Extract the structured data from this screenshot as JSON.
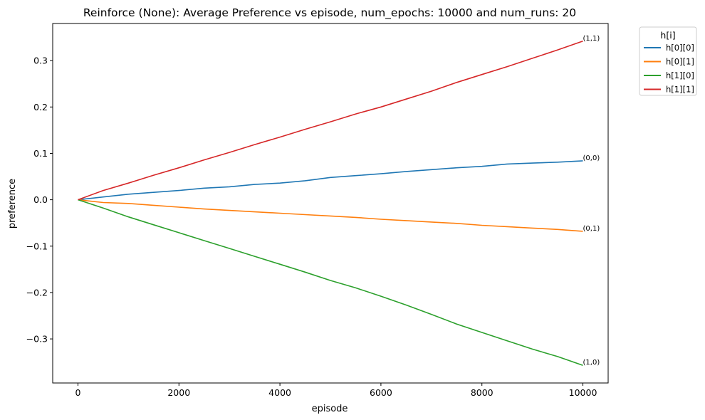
{
  "chart_data": {
    "type": "line",
    "title": "Reinforce (None): Average Preference vs episode, num_epochs: 10000 and num_runs: 20",
    "xlabel": "episode",
    "ylabel": "preference",
    "xlim": [
      -500,
      10500
    ],
    "ylim": [
      -0.395,
      0.38
    ],
    "xticks": [
      0,
      2000,
      4000,
      6000,
      8000,
      10000
    ],
    "yticks": [
      -0.3,
      -0.2,
      -0.1,
      0.0,
      0.1,
      0.2,
      0.3
    ],
    "ytick_labels": [
      "−0.3",
      "−0.2",
      "−0.1",
      "0.0",
      "0.1",
      "0.2",
      "0.3"
    ],
    "grid": false,
    "legend": {
      "title": "h[i]",
      "placement": "outside-top-right"
    },
    "series": [
      {
        "name": "h[0][0]",
        "color": "#1f77b4",
        "end_label": "(0,0)",
        "x": [
          0,
          500,
          1000,
          1500,
          2000,
          2500,
          3000,
          3500,
          4000,
          4500,
          5000,
          5500,
          6000,
          6500,
          7000,
          7500,
          8000,
          8500,
          9000,
          9500,
          10000
        ],
        "y": [
          0.0,
          0.006,
          0.012,
          0.016,
          0.02,
          0.025,
          0.028,
          0.033,
          0.036,
          0.041,
          0.048,
          0.052,
          0.056,
          0.061,
          0.065,
          0.069,
          0.072,
          0.077,
          0.079,
          0.081,
          0.084
        ]
      },
      {
        "name": "h[0][1]",
        "color": "#ff7f0e",
        "end_label": "(0,1)",
        "x": [
          0,
          500,
          1000,
          1500,
          2000,
          2500,
          3000,
          3500,
          4000,
          4500,
          5000,
          5500,
          6000,
          6500,
          7000,
          7500,
          8000,
          8500,
          9000,
          9500,
          10000
        ],
        "y": [
          0.0,
          -0.006,
          -0.008,
          -0.012,
          -0.016,
          -0.02,
          -0.023,
          -0.026,
          -0.029,
          -0.032,
          -0.035,
          -0.038,
          -0.042,
          -0.045,
          -0.048,
          -0.051,
          -0.055,
          -0.058,
          -0.061,
          -0.064,
          -0.068
        ]
      },
      {
        "name": "h[1][0]",
        "color": "#2ca02c",
        "end_label": "(1,0)",
        "x": [
          0,
          500,
          1000,
          1500,
          2000,
          2500,
          3000,
          3500,
          4000,
          4500,
          5000,
          5500,
          6000,
          6500,
          7000,
          7500,
          8000,
          8500,
          9000,
          9500,
          10000
        ],
        "y": [
          0.0,
          -0.018,
          -0.037,
          -0.054,
          -0.071,
          -0.088,
          -0.105,
          -0.122,
          -0.139,
          -0.156,
          -0.174,
          -0.19,
          -0.208,
          -0.227,
          -0.247,
          -0.268,
          -0.286,
          -0.304,
          -0.322,
          -0.338,
          -0.357
        ]
      },
      {
        "name": "h[1][1]",
        "color": "#d62728",
        "end_label": "(1,1)",
        "x": [
          0,
          500,
          1000,
          1500,
          2000,
          2500,
          3000,
          3500,
          4000,
          4500,
          5000,
          5500,
          6000,
          6500,
          7000,
          7500,
          8000,
          8500,
          9000,
          9500,
          10000
        ],
        "y": [
          0.0,
          0.02,
          0.036,
          0.053,
          0.069,
          0.086,
          0.102,
          0.119,
          0.135,
          0.152,
          0.168,
          0.185,
          0.2,
          0.217,
          0.234,
          0.253,
          0.27,
          0.287,
          0.305,
          0.323,
          0.342
        ]
      }
    ]
  }
}
